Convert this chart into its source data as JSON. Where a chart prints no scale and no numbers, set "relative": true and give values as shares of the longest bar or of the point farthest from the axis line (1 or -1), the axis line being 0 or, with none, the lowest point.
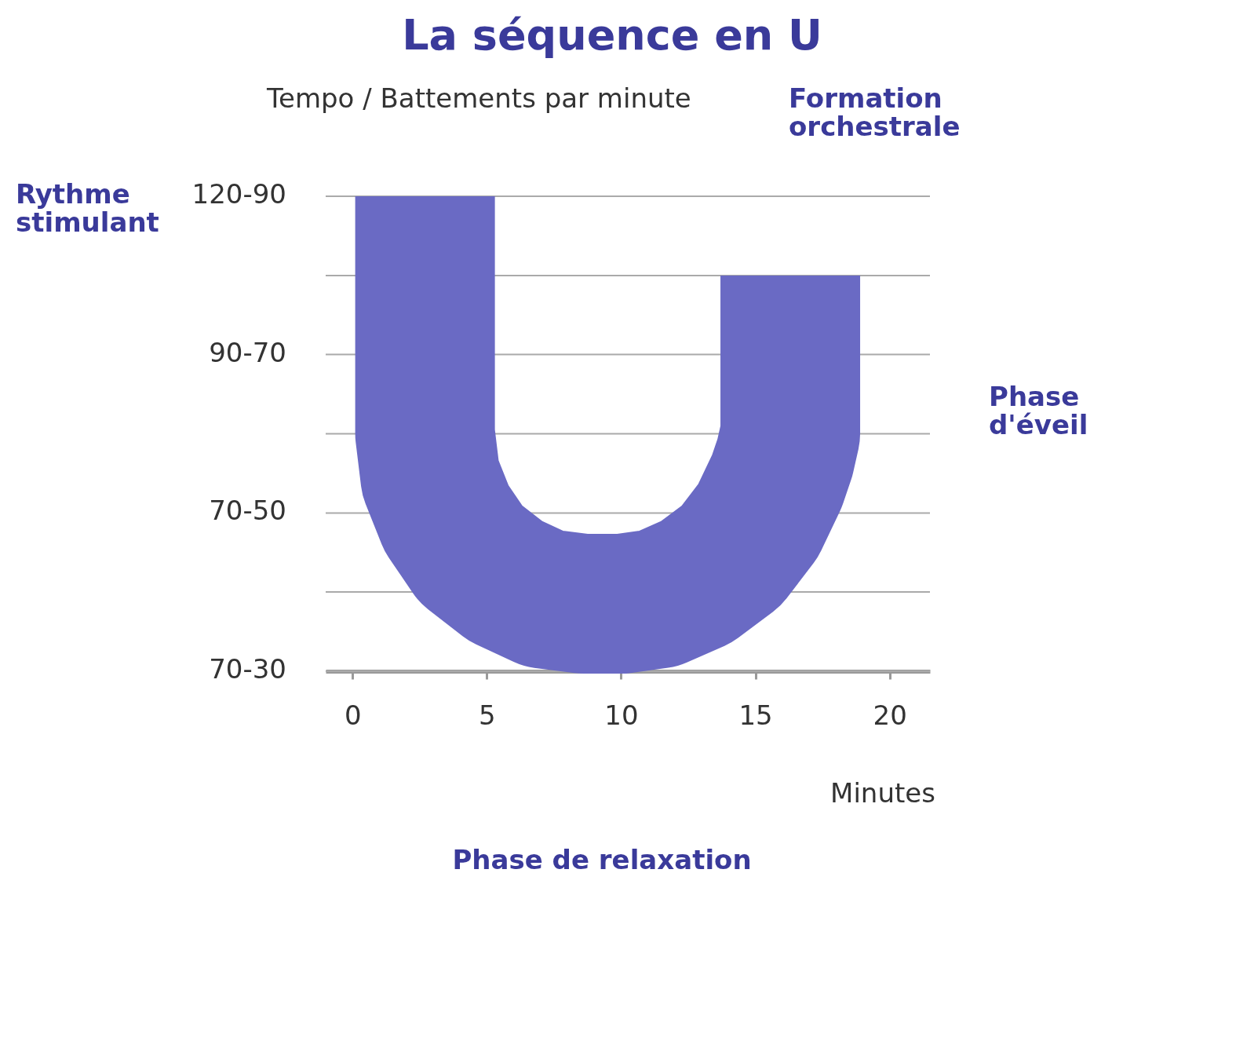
{
  "chart_data": {
    "type": "line",
    "title": "La séquence en U",
    "ylabel": "Tempo / Battements par minute",
    "xlabel": "Minutes",
    "annotations": [
      "Rythme stimulant",
      "Formation orchestrale",
      "Phase d'éveil",
      "Phase de relaxation",
      "120-90",
      "90-70",
      "70-50",
      "70-30"
    ],
    "relative": true,
    "xlim": [
      -1,
      21.5
    ],
    "xticks": [
      0,
      5,
      10,
      15,
      20
    ],
    "marker": "none",
    "line_style": "solid",
    "ref_lines": [
      {
        "axis": "y",
        "value": 0
      },
      {
        "axis": "y",
        "value": 0.167
      },
      {
        "axis": "y",
        "value": 0.333
      },
      {
        "axis": "y",
        "value": 0.5
      },
      {
        "axis": "y",
        "value": 0.667
      },
      {
        "axis": "y",
        "value": 0.833
      },
      {
        "axis": "y",
        "value": 1
      }
    ],
    "series": [
      {
        "color": "#6a6ac4",
        "x": [
          2.7,
          2.7,
          2.9,
          3.5,
          4.4,
          5.7,
          7.1,
          8.6,
          10.0,
          11.4,
          12.8,
          14.1,
          15.1,
          15.8,
          16.1,
          16.3,
          16.3
        ],
        "values": [
          1,
          0.5,
          0.407,
          0.322,
          0.247,
          0.19,
          0.153,
          0.142,
          0.142,
          0.153,
          0.188,
          0.243,
          0.317,
          0.4,
          0.45,
          0.5,
          0.833
        ]
      }
    ]
  }
}
